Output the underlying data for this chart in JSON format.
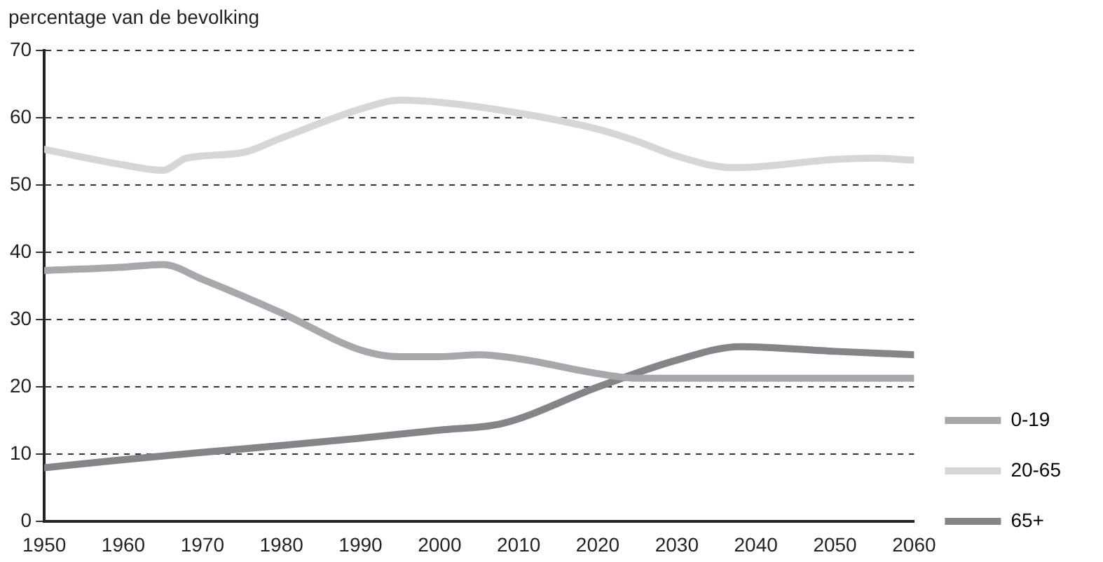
{
  "chart_data": {
    "type": "line",
    "ylabel": "percentage van de bevolking",
    "xlim": [
      1950,
      2060
    ],
    "xticks": [
      1950,
      1960,
      1970,
      1980,
      1990,
      2000,
      2010,
      2020,
      2030,
      2040,
      2050,
      2060
    ],
    "ylim": [
      0,
      70
    ],
    "yticks": [
      0,
      10,
      20,
      30,
      40,
      50,
      60,
      70
    ],
    "grid": "y",
    "legend": "right",
    "marker": "none",
    "line_style": "solid",
    "series": [
      {
        "name": "0-19",
        "color": "#a8a8aa",
        "x": [
          1950,
          1960,
          1965,
          1970,
          1980,
          1990,
          1995,
          2000,
          2005,
          2010,
          2020,
          2025,
          2060
        ],
        "values": [
          37.3,
          37.8,
          38.2,
          36,
          31,
          25.5,
          24.5,
          24.5,
          24.8,
          24.2,
          22,
          21.3,
          21.3
        ]
      },
      {
        "name": "20-65",
        "color": "#d6d6d6",
        "x": [
          1950,
          1960,
          1965,
          1968,
          1975,
          1980,
          1990,
          1995,
          2000,
          2010,
          2020,
          2025,
          2030,
          2037,
          2040,
          2050,
          2055,
          2060
        ],
        "values": [
          55.3,
          53,
          52.2,
          54,
          54.8,
          57,
          61.3,
          62.6,
          62.3,
          60.7,
          58.3,
          56.5,
          54.3,
          52.6,
          52.7,
          53.8,
          54,
          53.7
        ]
      },
      {
        "name": "65+",
        "color": "#858588",
        "x": [
          1950,
          1960,
          1970,
          1980,
          1990,
          2000,
          2008,
          2020,
          2030,
          2038,
          2050,
          2060
        ],
        "values": [
          8,
          9.2,
          10.3,
          11.3,
          12.4,
          13.6,
          14.6,
          20,
          24,
          26,
          25.3,
          24.8
        ]
      }
    ]
  }
}
